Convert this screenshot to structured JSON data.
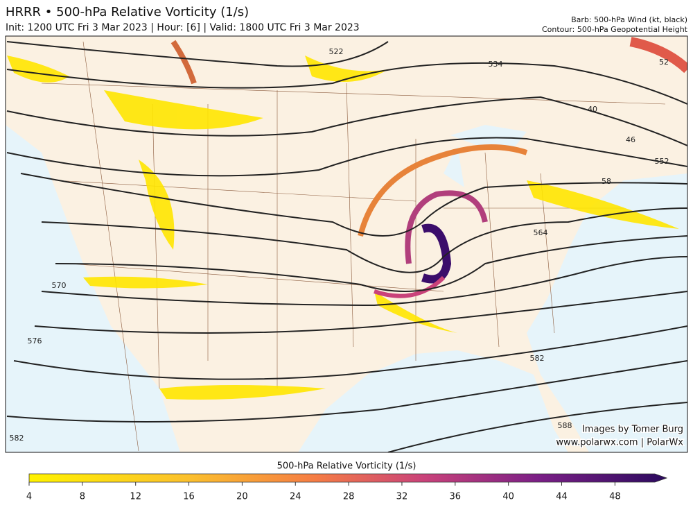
{
  "header": {
    "title": "HRRR • 500-hPa Relative Vorticity (1/s)",
    "subtitle": "Init: 1200 UTC Fri 3 Mar 2023 | Hour: [6] | Valid: 1800 UTC Fri 3 Mar 2023",
    "legend_barb": "Barb: 500-hPa Wind (kt, black)",
    "legend_contour": "Contour: 500-hPa Geopotential Height"
  },
  "map": {
    "contour_labels": [
      "522",
      "534",
      "40",
      "46",
      "552",
      "58",
      "564",
      "570",
      "576",
      "582",
      "582",
      "588",
      "52"
    ]
  },
  "credits": [
    "Images by Tomer Burg",
    "www.polarwx.com | PolarWx"
  ],
  "colorbar": {
    "label": "500-hPa Relative Vorticity (1/s)",
    "lim": [
      4,
      51
    ],
    "ticks": [
      4,
      8,
      12,
      16,
      20,
      24,
      28,
      32,
      36,
      40,
      44,
      48
    ]
  }
}
